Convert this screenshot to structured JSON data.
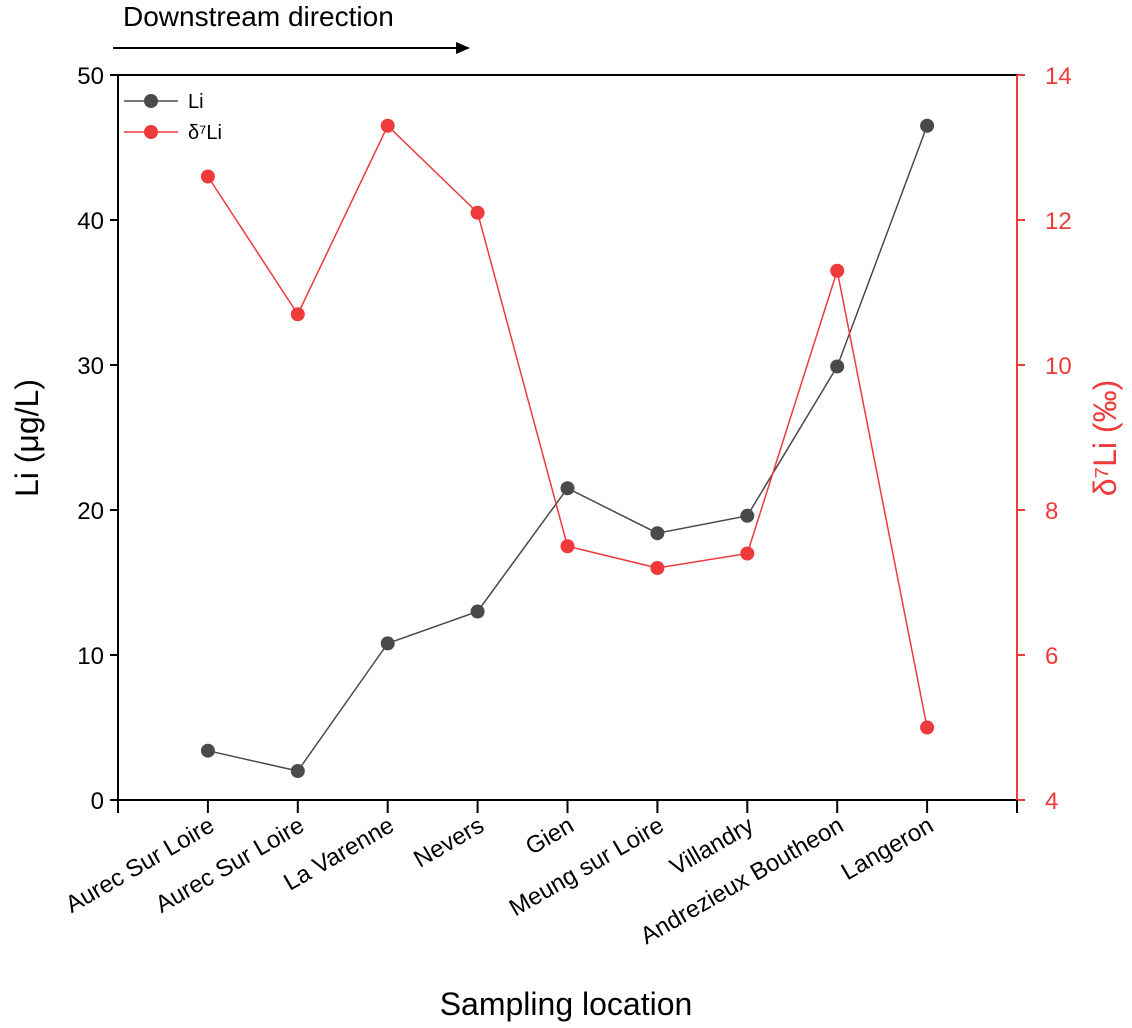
{
  "chart_data": {
    "type": "line",
    "annotation": "Downstream direction",
    "xlabel": "Sampling location",
    "categories": [
      "Aurec Sur Loire",
      "Aurec Sur Loire",
      "La Varenne",
      "Nevers",
      "Gien",
      "Meung sur Loire",
      "Villandry",
      "Andrezieux Boutheon",
      "Langeron"
    ],
    "y_left": {
      "label": "Li (μg/L)",
      "range": [
        0,
        50
      ],
      "ticks": [
        "0",
        "10",
        "20",
        "30",
        "40",
        "50"
      ],
      "tick_values": [
        0,
        10,
        20,
        30,
        40,
        50
      ]
    },
    "y_right": {
      "label": "δ⁷Li (‰)",
      "range": [
        4,
        14
      ],
      "ticks": [
        "4",
        "6",
        "8",
        "10",
        "12",
        "14"
      ],
      "tick_values": [
        4,
        6,
        8,
        10,
        12,
        14
      ]
    },
    "series": [
      {
        "name": "Li",
        "axis": "left",
        "color": "#4a4a4a",
        "values": [
          3.4,
          2.0,
          10.8,
          13.0,
          21.5,
          18.4,
          19.6,
          29.9,
          46.5
        ]
      },
      {
        "name": "δ⁷Li",
        "axis": "right",
        "color": "#ee3a3a",
        "values": [
          12.6,
          10.7,
          13.3,
          12.1,
          7.5,
          7.2,
          7.4,
          11.3,
          5.0
        ]
      }
    ],
    "legend_position": "top-left",
    "grid": false
  }
}
